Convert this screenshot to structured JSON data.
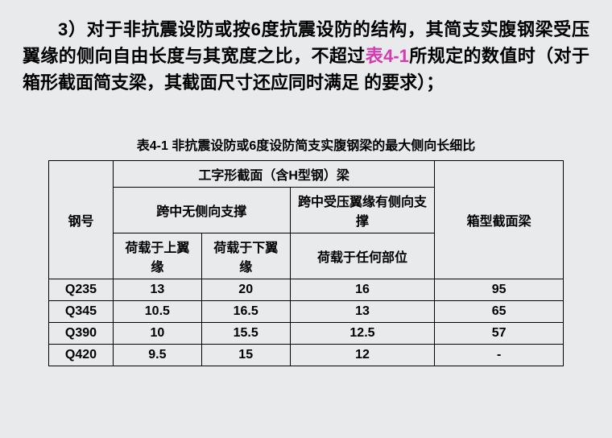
{
  "paragraph": {
    "prefix": "3）",
    "part1": "对于非抗震设防或按",
    "bold6": "6",
    "part2": "度抗震设防的结构，其简支实腹钢梁受压翼缘的侧向自由长度与其宽度之比，不超过",
    "ref": "表4-1",
    "part3": "所规定的数值时（对于箱形截面简支梁，其截面尺寸还应同时满足 的要求）；"
  },
  "table": {
    "title_prefix": "表4-1 ",
    "title_rest": "非抗震设防或6度设防简支实腹钢梁的最大侧向长细比",
    "header": {
      "steel": "钢号",
      "ibeam": "工字形截面（含H型钢）梁",
      "no_lateral": "跨中无侧向支撑",
      "lateral": "跨中受压翼缘有侧向支撑",
      "box": "箱型截面梁",
      "load_top": "荷载于上翼缘",
      "load_bottom": "荷载于下翼缘",
      "load_any": "荷载于任何部位"
    },
    "rows": [
      {
        "steel": "Q235",
        "top": "13",
        "bottom": "20",
        "any": "16",
        "box": "95"
      },
      {
        "steel": "Q345",
        "top": "10.5",
        "bottom": "16.5",
        "any": "13",
        "box": "65"
      },
      {
        "steel": "Q390",
        "top": "10",
        "bottom": "15.5",
        "any": "12.5",
        "box": "57"
      },
      {
        "steel": "Q420",
        "top": "9.5",
        "bottom": "15",
        "any": "12",
        "box": "-"
      }
    ]
  }
}
